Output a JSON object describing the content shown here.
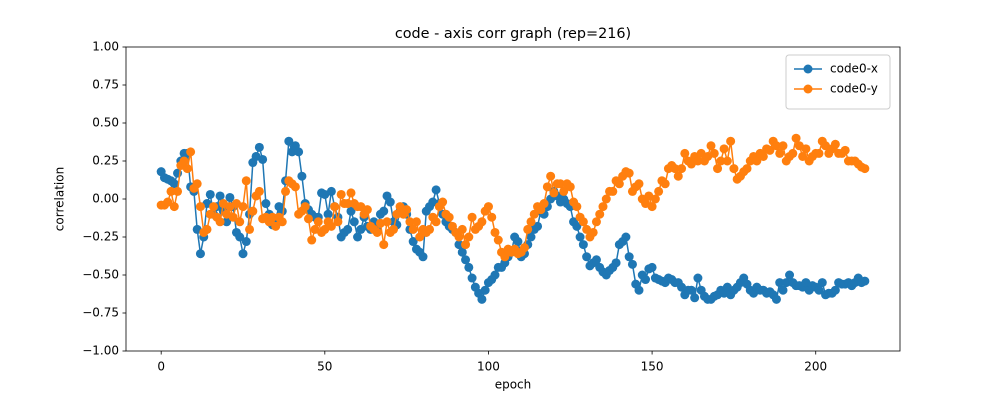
{
  "chart_data": {
    "type": "line",
    "title": "code - axis corr graph (rep=216)",
    "x_label": "epoch",
    "y_label": "correlation",
    "x": [
      0,
      1,
      2,
      3,
      4,
      5,
      6,
      7,
      8,
      9,
      10,
      11,
      12,
      13,
      14,
      15,
      16,
      17,
      18,
      19,
      20,
      21,
      22,
      23,
      24,
      25,
      26,
      27,
      28,
      29,
      30,
      31,
      32,
      33,
      34,
      35,
      36,
      37,
      38,
      39,
      40,
      41,
      42,
      43,
      44,
      45,
      46,
      47,
      48,
      49,
      50,
      51,
      52,
      53,
      54,
      55,
      56,
      57,
      58,
      59,
      60,
      61,
      62,
      63,
      64,
      65,
      66,
      67,
      68,
      69,
      70,
      71,
      72,
      73,
      74,
      75,
      76,
      77,
      78,
      79,
      80,
      81,
      82,
      83,
      84,
      85,
      86,
      87,
      88,
      89,
      90,
      91,
      92,
      93,
      94,
      95,
      96,
      97,
      98,
      99,
      100,
      101,
      102,
      103,
      104,
      105,
      106,
      107,
      108,
      109,
      110,
      111,
      112,
      113,
      114,
      115,
      116,
      117,
      118,
      119,
      120,
      121,
      122,
      123,
      124,
      125,
      126,
      127,
      128,
      129,
      130,
      131,
      132,
      133,
      134,
      135,
      136,
      137,
      138,
      139,
      140,
      141,
      142,
      143,
      144,
      145,
      146,
      147,
      148,
      149,
      150,
      151,
      152,
      153,
      154,
      155,
      156,
      157,
      158,
      159,
      160,
      161,
      162,
      163,
      164,
      165,
      166,
      167,
      168,
      169,
      170,
      171,
      172,
      173,
      174,
      175,
      176,
      177,
      178,
      179,
      180,
      181,
      182,
      183,
      184,
      185,
      186,
      187,
      188,
      189,
      190,
      191,
      192,
      193,
      194,
      195,
      196,
      197,
      198,
      199,
      200,
      201,
      202,
      203,
      204,
      205,
      206,
      207,
      208,
      209,
      210,
      211,
      212,
      213,
      214,
      215
    ],
    "series": [
      {
        "name": "code0-x",
        "color": "#1f77b4",
        "values": [
          0.18,
          0.14,
          0.13,
          0.12,
          0.1,
          0.17,
          0.25,
          0.3,
          0.3,
          0.08,
          0.05,
          -0.2,
          -0.36,
          -0.25,
          -0.03,
          0.03,
          -0.1,
          -0.05,
          0.02,
          -0.08,
          -0.15,
          0.01,
          -0.05,
          -0.22,
          -0.25,
          -0.36,
          -0.28,
          -0.1,
          0.24,
          0.28,
          0.34,
          0.26,
          -0.03,
          -0.1,
          -0.17,
          -0.13,
          -0.05,
          -0.08,
          0.12,
          0.38,
          0.31,
          0.35,
          0.31,
          0.15,
          -0.03,
          -0.07,
          -0.1,
          -0.12,
          -0.12,
          0.04,
          0.03,
          -0.1,
          0.05,
          -0.05,
          -0.12,
          -0.25,
          -0.22,
          -0.2,
          -0.08,
          -0.15,
          -0.25,
          -0.2,
          -0.12,
          -0.18,
          -0.2,
          -0.15,
          -0.2,
          -0.1,
          -0.08,
          0.02,
          -0.02,
          -0.15,
          -0.17,
          -0.08,
          -0.05,
          -0.1,
          -0.2,
          -0.28,
          -0.33,
          -0.35,
          -0.38,
          -0.08,
          -0.05,
          -0.02,
          0.06,
          -0.03,
          -0.1,
          -0.15,
          -0.18,
          -0.2,
          -0.22,
          -0.3,
          -0.35,
          -0.4,
          -0.45,
          -0.52,
          -0.58,
          -0.62,
          -0.66,
          -0.6,
          -0.55,
          -0.53,
          -0.5,
          -0.45,
          -0.45,
          -0.42,
          -0.38,
          -0.35,
          -0.25,
          -0.28,
          -0.38,
          -0.36,
          -0.3,
          -0.25,
          -0.2,
          -0.18,
          -0.08,
          -0.1,
          -0.05,
          0.0,
          0.05,
          0.02,
          -0.02,
          0.0,
          -0.03,
          -0.05,
          -0.15,
          -0.18,
          -0.25,
          -0.3,
          -0.38,
          -0.44,
          -0.42,
          -0.4,
          -0.45,
          -0.48,
          -0.5,
          -0.47,
          -0.45,
          -0.42,
          -0.3,
          -0.28,
          -0.25,
          -0.38,
          -0.43,
          -0.56,
          -0.6,
          -0.5,
          -0.53,
          -0.46,
          -0.45,
          -0.52,
          -0.53,
          -0.54,
          -0.55,
          -0.52,
          -0.53,
          -0.55,
          -0.55,
          -0.58,
          -0.63,
          -0.6,
          -0.6,
          -0.65,
          -0.52,
          -0.6,
          -0.64,
          -0.66,
          -0.66,
          -0.64,
          -0.63,
          -0.6,
          -0.62,
          -0.58,
          -0.63,
          -0.6,
          -0.58,
          -0.55,
          -0.52,
          -0.56,
          -0.6,
          -0.62,
          -0.58,
          -0.6,
          -0.6,
          -0.62,
          -0.61,
          -0.63,
          -0.66,
          -0.55,
          -0.6,
          -0.55,
          -0.5,
          -0.55,
          -0.57,
          -0.57,
          -0.58,
          -0.55,
          -0.6,
          -0.57,
          -0.58,
          -0.6,
          -0.55,
          -0.63,
          -0.62,
          -0.62,
          -0.6,
          -0.55,
          -0.56,
          -0.56,
          -0.55,
          -0.57,
          -0.55,
          -0.52,
          -0.55,
          -0.54
        ]
      },
      {
        "name": "code0-y",
        "color": "#ff7f0e",
        "values": [
          -0.04,
          -0.04,
          -0.02,
          0.05,
          -0.05,
          0.05,
          0.22,
          0.25,
          0.2,
          0.31,
          0.07,
          0.1,
          -0.05,
          -0.22,
          -0.2,
          -0.1,
          -0.05,
          -0.12,
          -0.15,
          -0.03,
          -0.1,
          -0.05,
          -0.12,
          -0.03,
          -0.15,
          -0.05,
          0.12,
          -0.2,
          -0.08,
          0.02,
          0.05,
          -0.13,
          -0.12,
          -0.15,
          -0.12,
          -0.18,
          -0.12,
          -0.15,
          0.05,
          0.12,
          0.1,
          0.08,
          -0.1,
          -0.08,
          -0.05,
          -0.13,
          -0.27,
          -0.2,
          -0.15,
          -0.22,
          -0.2,
          -0.15,
          -0.18,
          -0.05,
          -0.15,
          0.03,
          -0.03,
          -0.03,
          0.04,
          -0.03,
          -0.05,
          -0.05,
          -0.1,
          -0.07,
          -0.18,
          -0.2,
          -0.22,
          -0.16,
          -0.3,
          -0.15,
          -0.22,
          -0.2,
          -0.1,
          -0.05,
          -0.1,
          -0.07,
          -0.15,
          -0.2,
          -0.15,
          -0.25,
          -0.2,
          -0.22,
          -0.2,
          -0.12,
          -0.15,
          -0.05,
          -0.02,
          -0.1,
          -0.12,
          -0.18,
          -0.22,
          -0.25,
          -0.2,
          -0.3,
          -0.25,
          -0.12,
          -0.2,
          -0.18,
          -0.15,
          -0.08,
          -0.05,
          -0.12,
          -0.22,
          -0.27,
          -0.35,
          -0.38,
          -0.33,
          -0.35,
          -0.33,
          -0.36,
          -0.35,
          -0.32,
          -0.2,
          -0.15,
          -0.1,
          -0.05,
          -0.07,
          -0.03,
          0.08,
          0.15,
          0.04,
          0.1,
          0.1,
          0.05,
          0.1,
          0.08,
          -0.02,
          -0.05,
          -0.12,
          -0.15,
          -0.2,
          -0.25,
          -0.22,
          -0.15,
          -0.1,
          -0.05,
          0.0,
          0.05,
          0.05,
          0.12,
          0.1,
          0.15,
          0.18,
          0.17,
          0.05,
          0.08,
          0.1,
          0.0,
          -0.03,
          0.02,
          -0.05,
          0.0,
          0.05,
          0.12,
          0.1,
          0.2,
          0.22,
          0.2,
          0.15,
          0.2,
          0.3,
          0.25,
          0.23,
          0.28,
          0.25,
          0.3,
          0.25,
          0.28,
          0.35,
          0.3,
          0.2,
          0.25,
          0.33,
          0.25,
          0.38,
          0.2,
          0.13,
          0.15,
          0.18,
          0.2,
          0.25,
          0.28,
          0.25,
          0.3,
          0.28,
          0.33,
          0.32,
          0.38,
          0.35,
          0.3,
          0.35,
          0.25,
          0.28,
          0.3,
          0.4,
          0.35,
          0.28,
          0.33,
          0.25,
          0.28,
          0.3,
          0.3,
          0.38,
          0.35,
          0.3,
          0.33,
          0.36,
          0.3,
          0.3,
          0.32,
          0.25,
          0.25,
          0.25,
          0.23,
          0.21,
          0.2
        ]
      }
    ],
    "xlim": [
      -10.75,
      225.75
    ],
    "xticks": [
      0,
      50,
      100,
      150,
      200
    ],
    "ylim": [
      -1,
      1
    ],
    "yticks": [
      {
        "value": -1,
        "label": "−1.00"
      },
      {
        "value": -0.75,
        "label": "−0.75"
      },
      {
        "value": -0.5,
        "label": "−0.50"
      },
      {
        "value": -0.25,
        "label": "−0.25"
      },
      {
        "value": 0,
        "label": "0.00"
      },
      {
        "value": 0.25,
        "label": "0.25"
      },
      {
        "value": 0.5,
        "label": "0.50"
      },
      {
        "value": 0.75,
        "label": "0.75"
      },
      {
        "value": 1,
        "label": "1.00"
      }
    ],
    "legend": "upper right",
    "grid": false
  }
}
